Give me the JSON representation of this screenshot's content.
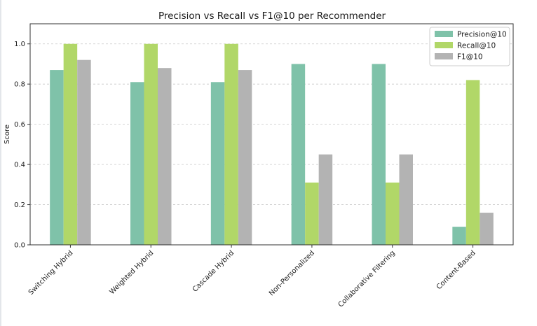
{
  "chart_data": {
    "type": "bar",
    "title": "Precision vs Recall vs F1@10 per Recommender",
    "xlabel": "",
    "ylabel": "Score",
    "ylim": [
      0,
      1.1
    ],
    "yticks": [
      0.0,
      0.2,
      0.4,
      0.6,
      0.8,
      1.0
    ],
    "ytick_labels": [
      "0.0",
      "0.2",
      "0.4",
      "0.6",
      "0.8",
      "1.0"
    ],
    "grid": "horizontal dashed",
    "legend_position": "top-right",
    "categories": [
      "Switching Hybrid",
      "Weighted Hybrid",
      "Cascade Hybrid",
      "Non-Personalized",
      "Collaborative Filtering",
      "Content-Based"
    ],
    "series": [
      {
        "name": "Precision@10",
        "color": "#7fc2a9",
        "values": [
          0.87,
          0.81,
          0.81,
          0.9,
          0.9,
          0.09
        ]
      },
      {
        "name": "Recall@10",
        "color": "#b1d768",
        "values": [
          1.0,
          1.0,
          1.0,
          0.31,
          0.31,
          0.82
        ]
      },
      {
        "name": "F1@10",
        "color": "#b3b3b3",
        "values": [
          0.92,
          0.88,
          0.87,
          0.45,
          0.45,
          0.16
        ]
      }
    ]
  }
}
